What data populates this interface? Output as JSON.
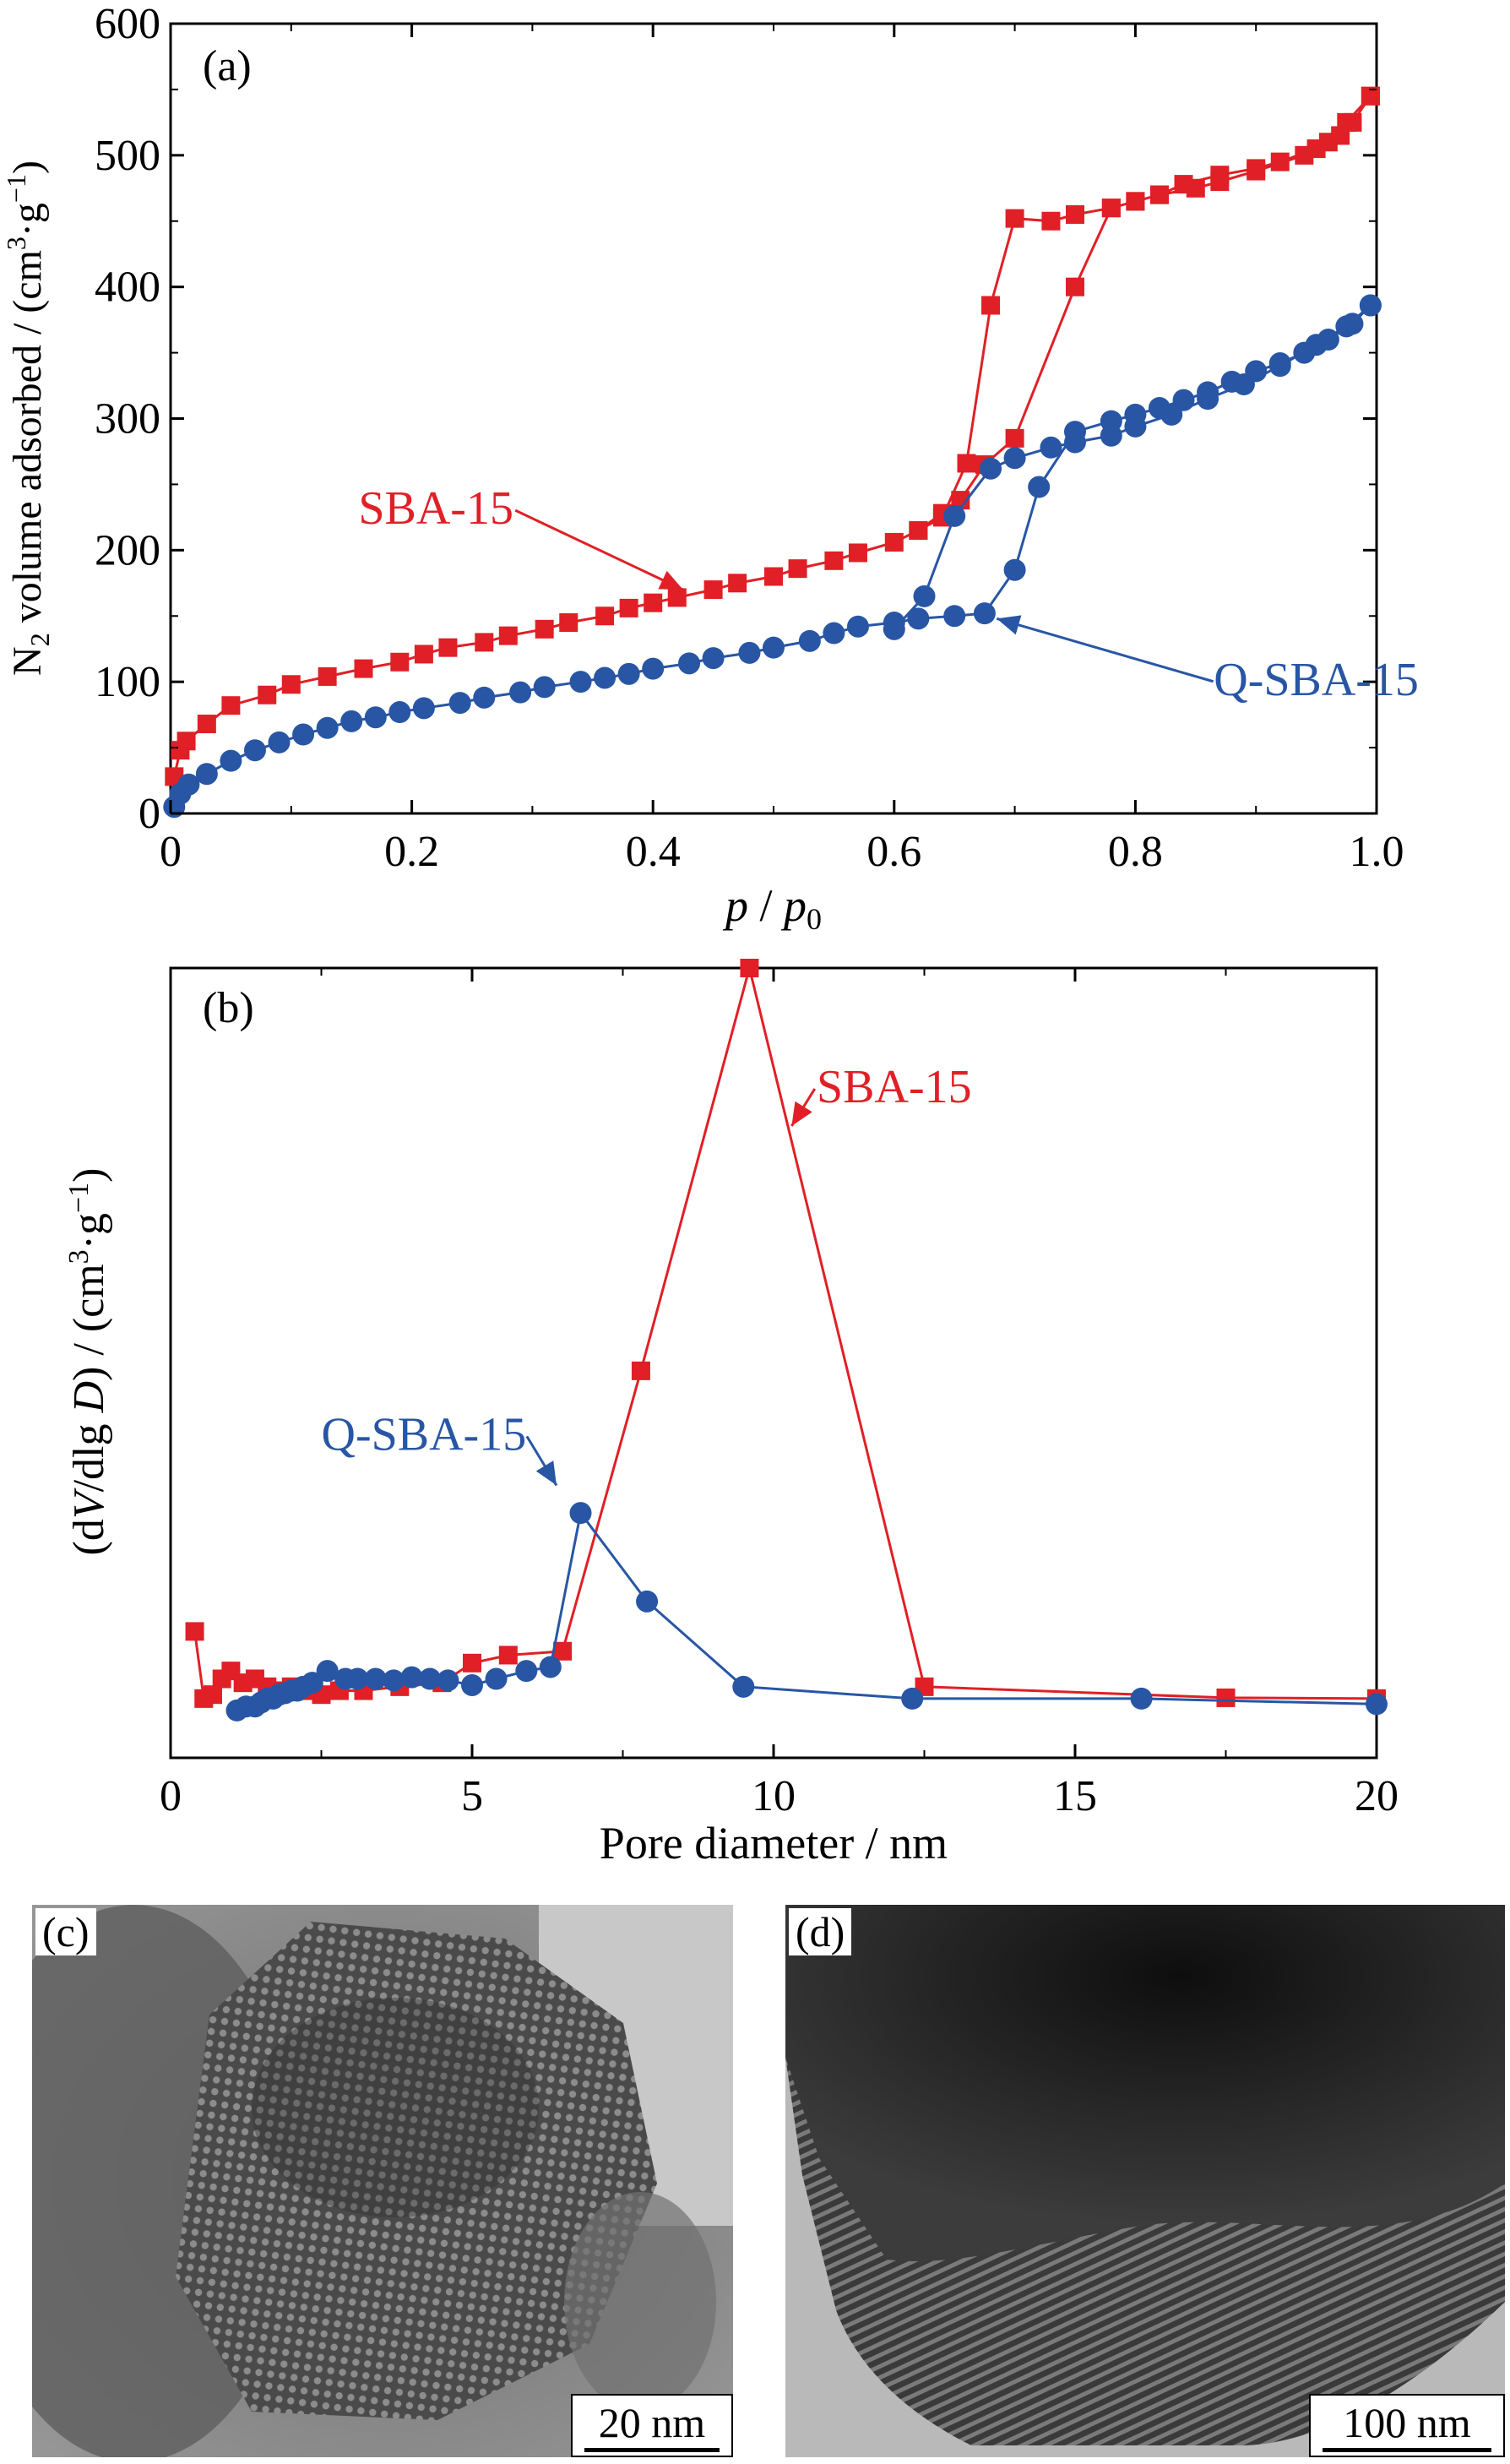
{
  "colors": {
    "sba15": "#e02026",
    "qsba15": "#2856a5",
    "axis": "#000000"
  },
  "chart_data": [
    {
      "id": "a",
      "type": "line",
      "panel_label": "(a)",
      "xlabel_italic_p": "p",
      "xlabel_slash": " / ",
      "xlabel_p0": "p",
      "xlabel_p0_sub": "0",
      "ylabel_parts": {
        "n": "N",
        "sub": "2",
        "mid": " volume adsorbed / (cm",
        "sup3": "3",
        "dot": "·g",
        "supm1": "−1",
        "close": ")"
      },
      "xlim": [
        0,
        1.0
      ],
      "ylim": [
        0,
        600
      ],
      "xticks": [
        0,
        0.2,
        0.4,
        0.6,
        0.8,
        1.0
      ],
      "xtick_labels": [
        "0",
        "0.2",
        "0.4",
        "0.6",
        "0.8",
        "1.0"
      ],
      "yticks": [
        0,
        100,
        200,
        300,
        400,
        500,
        600
      ],
      "ytick_labels": [
        "0",
        "100",
        "200",
        "300",
        "400",
        "500",
        "600"
      ],
      "annotations": [
        {
          "text": "SBA-15",
          "color": "sba15",
          "text_at": [
            0.22,
            220
          ],
          "arrow_to": [
            0.425,
            170
          ]
        },
        {
          "text": "Q-SBA-15",
          "color": "qsba15",
          "text_at": [
            0.95,
            90
          ],
          "arrow_to": [
            0.685,
            148
          ]
        }
      ],
      "series": [
        {
          "name": "SBA-15",
          "color": "sba15",
          "marker": "square",
          "x": [
            0.003,
            0.008,
            0.013,
            0.03,
            0.05,
            0.08,
            0.1,
            0.13,
            0.16,
            0.19,
            0.21,
            0.23,
            0.26,
            0.28,
            0.31,
            0.33,
            0.36,
            0.38,
            0.4,
            0.42,
            0.45,
            0.47,
            0.5,
            0.52,
            0.55,
            0.57,
            0.6,
            0.62,
            0.64,
            0.655,
            0.675,
            0.7,
            0.75,
            0.78,
            0.8,
            0.82,
            0.84,
            0.87,
            0.9,
            0.92,
            0.95,
            0.97,
            0.98,
            0.995,
            0.995,
            0.975,
            0.96,
            0.94,
            0.9,
            0.87,
            0.85,
            0.82,
            0.8,
            0.78,
            0.75,
            0.73,
            0.7,
            0.68,
            0.66,
            0.64,
            0.62
          ],
          "y": [
            28,
            48,
            55,
            68,
            82,
            90,
            98,
            104,
            110,
            115,
            121,
            126,
            130,
            135,
            140,
            145,
            150,
            156,
            160,
            164,
            170,
            175,
            180,
            186,
            192,
            198,
            206,
            215,
            228,
            238,
            265,
            285,
            400,
            460,
            465,
            470,
            478,
            485,
            490,
            495,
            505,
            515,
            525,
            545,
            545,
            525,
            510,
            500,
            488,
            480,
            475,
            470,
            465,
            460,
            455,
            450,
            452,
            386,
            266,
            225,
            215
          ]
        },
        {
          "name": "Q-SBA-15",
          "color": "qsba15",
          "marker": "circle",
          "x": [
            0.003,
            0.008,
            0.015,
            0.03,
            0.05,
            0.07,
            0.09,
            0.11,
            0.13,
            0.15,
            0.17,
            0.19,
            0.21,
            0.24,
            0.26,
            0.29,
            0.31,
            0.34,
            0.36,
            0.38,
            0.4,
            0.43,
            0.45,
            0.48,
            0.5,
            0.53,
            0.55,
            0.57,
            0.6,
            0.62,
            0.65,
            0.675,
            0.7,
            0.72,
            0.75,
            0.78,
            0.8,
            0.82,
            0.84,
            0.86,
            0.88,
            0.9,
            0.92,
            0.94,
            0.96,
            0.98,
            0.995,
            0.995,
            0.975,
            0.95,
            0.92,
            0.89,
            0.86,
            0.83,
            0.8,
            0.78,
            0.75,
            0.73,
            0.7,
            0.68,
            0.65,
            0.625,
            0.6
          ],
          "y": [
            5,
            15,
            22,
            30,
            40,
            48,
            54,
            60,
            65,
            70,
            73,
            77,
            80,
            84,
            88,
            92,
            96,
            100,
            103,
            106,
            110,
            114,
            118,
            122,
            126,
            131,
            137,
            142,
            145,
            148,
            150,
            152,
            185,
            248,
            290,
            298,
            303,
            308,
            314,
            320,
            328,
            336,
            342,
            350,
            360,
            372,
            386,
            386,
            370,
            356,
            340,
            326,
            315,
            303,
            294,
            287,
            282,
            278,
            270,
            262,
            226,
            165,
            140
          ]
        }
      ]
    },
    {
      "id": "b",
      "type": "line",
      "panel_label": "(b)",
      "xlabel": "Pore diameter / nm",
      "ylabel_parts": {
        "open": "(d",
        "v": "V",
        "mid": "/dlg ",
        "d": "D",
        "close": ") / (cm",
        "sup3": "3",
        "dot": "·g",
        "supm1": "−1",
        "end": ")"
      },
      "xlim": [
        0,
        20
      ],
      "ylim": [
        0,
        1
      ],
      "y_tick_labels_shown": false,
      "xticks": [
        0,
        5,
        10,
        15,
        20
      ],
      "xtick_labels": [
        "0",
        "5",
        "10",
        "15",
        "20"
      ],
      "annotations": [
        {
          "text": "SBA-15",
          "color": "sba15",
          "text_at": [
            12.0,
            0.83
          ],
          "arrow_to": [
            10.3,
            0.8
          ]
        },
        {
          "text": "Q-SBA-15",
          "color": "qsba15",
          "text_at": [
            4.2,
            0.39
          ],
          "arrow_to": [
            6.4,
            0.345
          ]
        }
      ],
      "series": [
        {
          "name": "SBA-15",
          "color": "sba15",
          "marker": "square",
          "x": [
            0.4,
            0.55,
            0.7,
            0.85,
            1.0,
            1.2,
            1.4,
            1.6,
            1.8,
            2.0,
            2.2,
            2.5,
            2.8,
            3.2,
            3.8,
            4.5,
            5.0,
            5.6,
            6.5,
            7.8,
            9.6,
            12.5,
            17.5,
            20.0
          ],
          "y": [
            0.16,
            0.075,
            0.08,
            0.1,
            0.11,
            0.095,
            0.1,
            0.09,
            0.085,
            0.09,
            0.085,
            0.08,
            0.085,
            0.085,
            0.09,
            0.095,
            0.12,
            0.13,
            0.135,
            0.49,
            1.0,
            0.09,
            0.076,
            0.075
          ]
        },
        {
          "name": "Q-SBA-15",
          "color": "qsba15",
          "marker": "circle",
          "x": [
            1.1,
            1.25,
            1.4,
            1.5,
            1.6,
            1.7,
            1.8,
            1.9,
            2.0,
            2.1,
            2.2,
            2.35,
            2.6,
            2.9,
            3.1,
            3.4,
            3.7,
            4.0,
            4.3,
            4.6,
            5.0,
            5.4,
            5.9,
            6.3,
            6.8,
            7.9,
            9.5,
            12.3,
            16.1,
            20.0
          ],
          "y": [
            0.06,
            0.065,
            0.065,
            0.07,
            0.075,
            0.075,
            0.08,
            0.082,
            0.085,
            0.085,
            0.09,
            0.095,
            0.11,
            0.1,
            0.1,
            0.1,
            0.098,
            0.102,
            0.1,
            0.098,
            0.092,
            0.1,
            0.11,
            0.115,
            0.31,
            0.198,
            0.09,
            0.075,
            0.075,
            0.068
          ]
        }
      ]
    }
  ],
  "tem_images": [
    {
      "id": "c",
      "panel_label": "(c)",
      "scale_label": "20 nm"
    },
    {
      "id": "d",
      "panel_label": "(d)",
      "scale_label": "100 nm"
    }
  ]
}
